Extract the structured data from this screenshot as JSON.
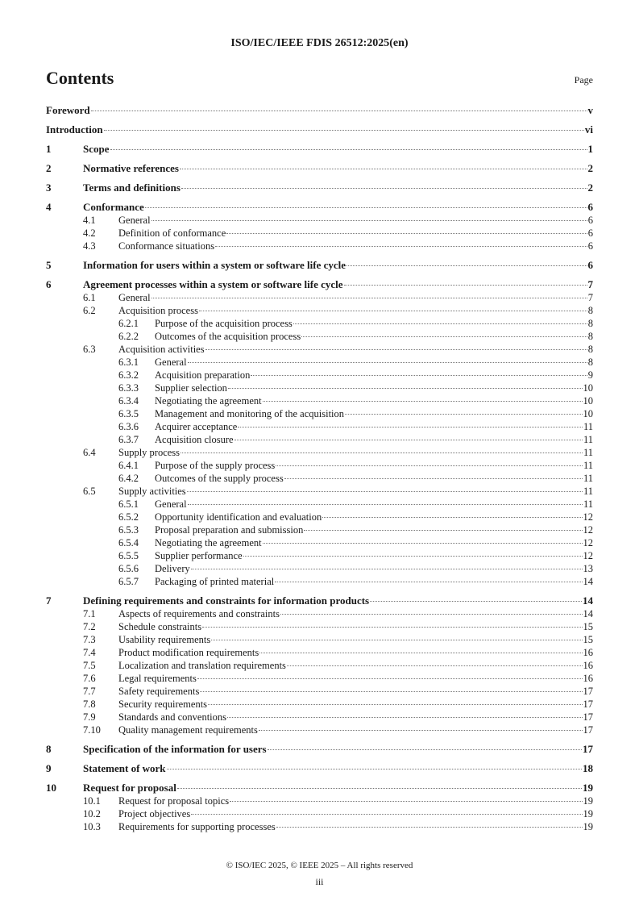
{
  "header": "ISO/IEC/IEEE FDIS 26512:2025(en)",
  "title": "Contents",
  "page_label": "Page",
  "entries": [
    {
      "num": "",
      "title": "Foreword",
      "page": "v",
      "level": 1
    },
    {
      "num": "",
      "title": "Introduction",
      "page": "vi",
      "level": 1
    },
    {
      "num": "1",
      "title": "Scope",
      "page": "1",
      "level": 1
    },
    {
      "num": "2",
      "title": "Normative references",
      "page": "2",
      "level": 1
    },
    {
      "num": "3",
      "title": "Terms and definitions",
      "page": "2",
      "level": 1
    },
    {
      "num": "4",
      "title": "Conformance",
      "page": "6",
      "level": 1
    },
    {
      "num": "4.1",
      "title": "General",
      "page": "6",
      "level": 2
    },
    {
      "num": "4.2",
      "title": "Definition of conformance",
      "page": "6",
      "level": 2
    },
    {
      "num": "4.3",
      "title": "Conformance situations",
      "page": "6",
      "level": 2
    },
    {
      "num": "5",
      "title": "Information for users within a system or software life cycle",
      "page": "6",
      "level": 1
    },
    {
      "num": "6",
      "title": "Agreement processes within a system or software life cycle",
      "page": "7",
      "level": 1
    },
    {
      "num": "6.1",
      "title": "General",
      "page": "7",
      "level": 2
    },
    {
      "num": "6.2",
      "title": "Acquisition process",
      "page": "8",
      "level": 2
    },
    {
      "num": "6.2.1",
      "title": "Purpose of the acquisition process",
      "page": "8",
      "level": 3
    },
    {
      "num": "6.2.2",
      "title": "Outcomes of the acquisition process",
      "page": "8",
      "level": 3
    },
    {
      "num": "6.3",
      "title": "Acquisition activities",
      "page": "8",
      "level": 2
    },
    {
      "num": "6.3.1",
      "title": "General",
      "page": "8",
      "level": 3
    },
    {
      "num": "6.3.2",
      "title": "Acquisition preparation",
      "page": "9",
      "level": 3
    },
    {
      "num": "6.3.3",
      "title": "Supplier selection",
      "page": "10",
      "level": 3
    },
    {
      "num": "6.3.4",
      "title": "Negotiating the agreement",
      "page": "10",
      "level": 3
    },
    {
      "num": "6.3.5",
      "title": "Management and monitoring of the acquisition",
      "page": "10",
      "level": 3
    },
    {
      "num": "6.3.6",
      "title": "Acquirer acceptance",
      "page": "11",
      "level": 3
    },
    {
      "num": "6.3.7",
      "title": "Acquisition closure",
      "page": "11",
      "level": 3
    },
    {
      "num": "6.4",
      "title": "Supply process",
      "page": "11",
      "level": 2
    },
    {
      "num": "6.4.1",
      "title": "Purpose of the supply process",
      "page": "11",
      "level": 3
    },
    {
      "num": "6.4.2",
      "title": "Outcomes of the supply process",
      "page": "11",
      "level": 3
    },
    {
      "num": "6.5",
      "title": "Supply activities",
      "page": "11",
      "level": 2
    },
    {
      "num": "6.5.1",
      "title": "General",
      "page": "11",
      "level": 3
    },
    {
      "num": "6.5.2",
      "title": "Opportunity identification and evaluation",
      "page": "12",
      "level": 3
    },
    {
      "num": "6.5.3",
      "title": "Proposal preparation and submission",
      "page": "12",
      "level": 3
    },
    {
      "num": "6.5.4",
      "title": "Negotiating the agreement",
      "page": "12",
      "level": 3
    },
    {
      "num": "6.5.5",
      "title": "Supplier performance",
      "page": "12",
      "level": 3
    },
    {
      "num": "6.5.6",
      "title": "Delivery",
      "page": "13",
      "level": 3
    },
    {
      "num": "6.5.7",
      "title": "Packaging of printed material",
      "page": "14",
      "level": 3
    },
    {
      "num": "7",
      "title": "Defining requirements and constraints for information products",
      "page": "14",
      "level": 1
    },
    {
      "num": "7.1",
      "title": "Aspects of requirements and constraints",
      "page": "14",
      "level": 2
    },
    {
      "num": "7.2",
      "title": "Schedule constraints",
      "page": "15",
      "level": 2
    },
    {
      "num": "7.3",
      "title": "Usability requirements",
      "page": "15",
      "level": 2
    },
    {
      "num": "7.4",
      "title": "Product modification requirements",
      "page": "16",
      "level": 2
    },
    {
      "num": "7.5",
      "title": "Localization and translation requirements",
      "page": "16",
      "level": 2
    },
    {
      "num": "7.6",
      "title": "Legal requirements",
      "page": "16",
      "level": 2
    },
    {
      "num": "7.7",
      "title": "Safety requirements",
      "page": "17",
      "level": 2
    },
    {
      "num": "7.8",
      "title": "Security requirements",
      "page": "17",
      "level": 2
    },
    {
      "num": "7.9",
      "title": "Standards and conventions",
      "page": "17",
      "level": 2
    },
    {
      "num": "7.10",
      "title": "Quality management requirements",
      "page": "17",
      "level": 2
    },
    {
      "num": "8",
      "title": "Specification of the information for users",
      "page": "17",
      "level": 1
    },
    {
      "num": "9",
      "title": "Statement of work",
      "page": "18",
      "level": 1
    },
    {
      "num": "10",
      "title": "Request for proposal",
      "page": "19",
      "level": 1
    },
    {
      "num": "10.1",
      "title": "Request for proposal topics",
      "page": "19",
      "level": 2
    },
    {
      "num": "10.2",
      "title": "Project objectives",
      "page": "19",
      "level": 2
    },
    {
      "num": "10.3",
      "title": "Requirements for supporting processes",
      "page": "19",
      "level": 2
    }
  ],
  "footer": "© ISO/IEC 2025, © IEEE 2025 – All rights reserved",
  "page_number": "iii"
}
